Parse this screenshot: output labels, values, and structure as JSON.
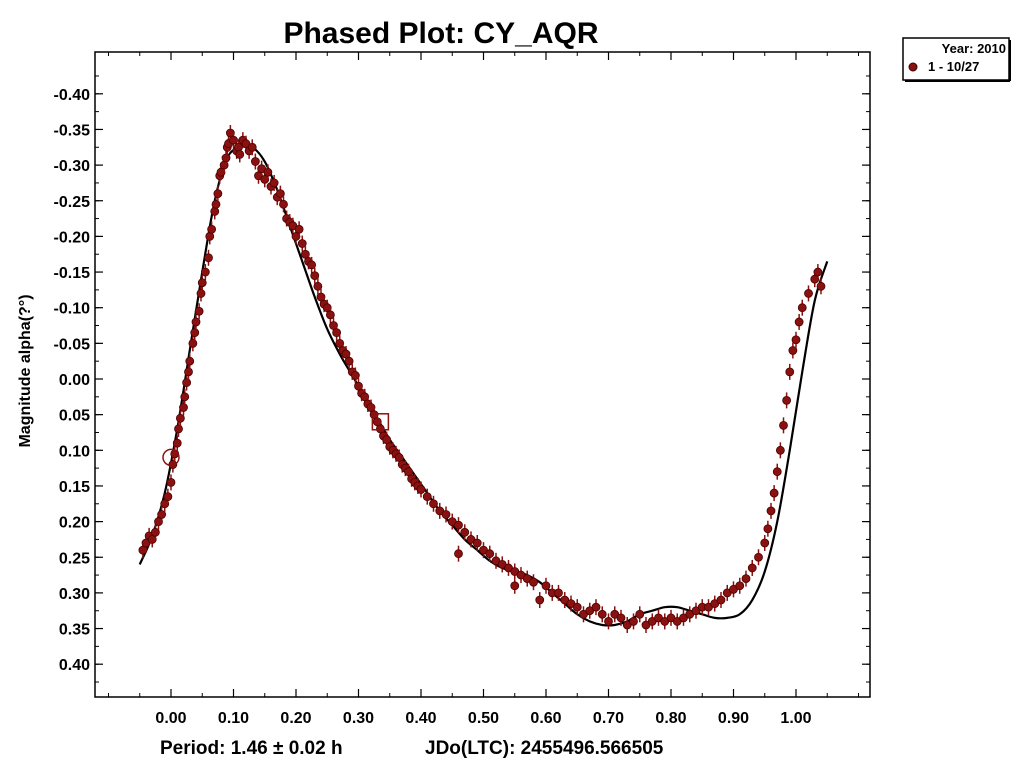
{
  "chart_data": {
    "type": "scatter",
    "title": "Phased Plot: CY_AQR",
    "ylabel": "Magnitude alpha(?°)",
    "xlabel": "",
    "footer": {
      "period": "Period: 1.46 ± 0.02 h",
      "jdo": "JDo(LTC): 2455496.566505"
    },
    "legend": {
      "position": "top-right",
      "title": "Year: 2010",
      "entries": [
        "1 - 10/27"
      ]
    },
    "x_ticks": [
      "0.00",
      "0.10",
      "0.20",
      "0.30",
      "0.40",
      "0.50",
      "0.60",
      "0.70",
      "0.80",
      "0.90",
      "1.00"
    ],
    "y_ticks": [
      "-0.40",
      "-0.35",
      "-0.30",
      "-0.25",
      "-0.20",
      "-0.15",
      "-0.10",
      "-0.05",
      "0.00",
      "0.05",
      "0.10",
      "0.15",
      "0.20",
      "0.25",
      "0.30",
      "0.35",
      "0.40"
    ],
    "xlim": [
      -0.12,
      1.12
    ],
    "ylim": [
      -0.45,
      0.45
    ],
    "y_inverted": true,
    "grid": false,
    "colors": {
      "points": "#8b1111",
      "fit": "#000000"
    },
    "series": [
      {
        "name": "1 - 10/27",
        "marker": "circle-errorbar",
        "points": [
          [
            -0.045,
            0.24
          ],
          [
            -0.04,
            0.23
          ],
          [
            -0.035,
            0.22
          ],
          [
            -0.03,
            0.225
          ],
          [
            -0.025,
            0.215
          ],
          [
            -0.02,
            0.2
          ],
          [
            -0.015,
            0.19
          ],
          [
            -0.01,
            0.175
          ],
          [
            -0.005,
            0.165
          ],
          [
            0.0,
            0.145
          ],
          [
            0.003,
            0.12
          ],
          [
            0.006,
            0.105
          ],
          [
            0.01,
            0.09
          ],
          [
            0.012,
            0.07
          ],
          [
            0.015,
            0.055
          ],
          [
            0.02,
            0.04
          ],
          [
            0.022,
            0.025
          ],
          [
            0.025,
            0.005
          ],
          [
            0.028,
            -0.01
          ],
          [
            0.03,
            -0.025
          ],
          [
            0.035,
            -0.05
          ],
          [
            0.038,
            -0.065
          ],
          [
            0.04,
            -0.08
          ],
          [
            0.045,
            -0.095
          ],
          [
            0.048,
            -0.12
          ],
          [
            0.05,
            -0.135
          ],
          [
            0.055,
            -0.15
          ],
          [
            0.06,
            -0.17
          ],
          [
            0.062,
            -0.2
          ],
          [
            0.065,
            -0.21
          ],
          [
            0.07,
            -0.235
          ],
          [
            0.072,
            -0.245
          ],
          [
            0.075,
            -0.26
          ],
          [
            0.078,
            -0.285
          ],
          [
            0.08,
            -0.29
          ],
          [
            0.085,
            -0.3
          ],
          [
            0.088,
            -0.31
          ],
          [
            0.09,
            -0.325
          ],
          [
            0.092,
            -0.33
          ],
          [
            0.095,
            -0.345
          ],
          [
            0.1,
            -0.335
          ],
          [
            0.105,
            -0.32
          ],
          [
            0.108,
            -0.325
          ],
          [
            0.11,
            -0.315
          ],
          [
            0.115,
            -0.335
          ],
          [
            0.12,
            -0.33
          ],
          [
            0.125,
            -0.32
          ],
          [
            0.13,
            -0.325
          ],
          [
            0.135,
            -0.305
          ],
          [
            0.14,
            -0.285
          ],
          [
            0.145,
            -0.295
          ],
          [
            0.15,
            -0.28
          ],
          [
            0.155,
            -0.29
          ],
          [
            0.16,
            -0.27
          ],
          [
            0.165,
            -0.275
          ],
          [
            0.17,
            -0.255
          ],
          [
            0.175,
            -0.26
          ],
          [
            0.18,
            -0.245
          ],
          [
            0.185,
            -0.225
          ],
          [
            0.19,
            -0.22
          ],
          [
            0.195,
            -0.215
          ],
          [
            0.2,
            -0.2
          ],
          [
            0.205,
            -0.21
          ],
          [
            0.21,
            -0.19
          ],
          [
            0.215,
            -0.175
          ],
          [
            0.22,
            -0.165
          ],
          [
            0.225,
            -0.16
          ],
          [
            0.23,
            -0.145
          ],
          [
            0.235,
            -0.13
          ],
          [
            0.24,
            -0.115
          ],
          [
            0.245,
            -0.105
          ],
          [
            0.25,
            -0.1
          ],
          [
            0.255,
            -0.09
          ],
          [
            0.26,
            -0.075
          ],
          [
            0.265,
            -0.065
          ],
          [
            0.27,
            -0.05
          ],
          [
            0.275,
            -0.04
          ],
          [
            0.28,
            -0.035
          ],
          [
            0.285,
            -0.025
          ],
          [
            0.29,
            -0.01
          ],
          [
            0.295,
            -0.005
          ],
          [
            0.3,
            0.01
          ],
          [
            0.305,
            0.02
          ],
          [
            0.31,
            0.025
          ],
          [
            0.315,
            0.035
          ],
          [
            0.32,
            0.04
          ],
          [
            0.325,
            0.05
          ],
          [
            0.33,
            0.06
          ],
          [
            0.335,
            0.07
          ],
          [
            0.34,
            0.08
          ],
          [
            0.345,
            0.085
          ],
          [
            0.35,
            0.095
          ],
          [
            0.355,
            0.1
          ],
          [
            0.36,
            0.105
          ],
          [
            0.365,
            0.11
          ],
          [
            0.37,
            0.12
          ],
          [
            0.375,
            0.125
          ],
          [
            0.38,
            0.13
          ],
          [
            0.385,
            0.14
          ],
          [
            0.39,
            0.145
          ],
          [
            0.395,
            0.15
          ],
          [
            0.4,
            0.155
          ],
          [
            0.41,
            0.165
          ],
          [
            0.42,
            0.175
          ],
          [
            0.43,
            0.185
          ],
          [
            0.44,
            0.19
          ],
          [
            0.45,
            0.2
          ],
          [
            0.46,
            0.205
          ],
          [
            0.47,
            0.215
          ],
          [
            0.48,
            0.225
          ],
          [
            0.49,
            0.23
          ],
          [
            0.5,
            0.24
          ],
          [
            0.51,
            0.245
          ],
          [
            0.52,
            0.255
          ],
          [
            0.53,
            0.26
          ],
          [
            0.54,
            0.265
          ],
          [
            0.55,
            0.27
          ],
          [
            0.56,
            0.275
          ],
          [
            0.57,
            0.28
          ],
          [
            0.58,
            0.285
          ],
          [
            0.6,
            0.29
          ],
          [
            0.61,
            0.3
          ],
          [
            0.62,
            0.3
          ],
          [
            0.63,
            0.31
          ],
          [
            0.64,
            0.315
          ],
          [
            0.65,
            0.32
          ],
          [
            0.66,
            0.33
          ],
          [
            0.67,
            0.325
          ],
          [
            0.68,
            0.32
          ],
          [
            0.69,
            0.33
          ],
          [
            0.7,
            0.34
          ],
          [
            0.71,
            0.33
          ],
          [
            0.72,
            0.335
          ],
          [
            0.73,
            0.345
          ],
          [
            0.74,
            0.34
          ],
          [
            0.75,
            0.33
          ],
          [
            0.76,
            0.345
          ],
          [
            0.77,
            0.34
          ],
          [
            0.78,
            0.335
          ],
          [
            0.79,
            0.34
          ],
          [
            0.8,
            0.335
          ],
          [
            0.81,
            0.34
          ],
          [
            0.82,
            0.335
          ],
          [
            0.83,
            0.33
          ],
          [
            0.84,
            0.325
          ],
          [
            0.85,
            0.32
          ],
          [
            0.86,
            0.32
          ],
          [
            0.87,
            0.315
          ],
          [
            0.88,
            0.31
          ],
          [
            0.89,
            0.3
          ],
          [
            0.9,
            0.295
          ],
          [
            0.91,
            0.29
          ],
          [
            0.92,
            0.28
          ],
          [
            0.93,
            0.265
          ],
          [
            0.94,
            0.25
          ],
          [
            0.95,
            0.23
          ],
          [
            0.955,
            0.21
          ],
          [
            0.96,
            0.185
          ],
          [
            0.965,
            0.16
          ],
          [
            0.97,
            0.13
          ],
          [
            0.975,
            0.1
          ],
          [
            0.98,
            0.065
          ],
          [
            0.985,
            0.03
          ],
          [
            0.99,
            -0.01
          ],
          [
            0.995,
            -0.04
          ],
          [
            1.0,
            -0.055
          ],
          [
            1.005,
            -0.08
          ],
          [
            1.01,
            -0.1
          ],
          [
            1.02,
            -0.12
          ],
          [
            1.03,
            -0.14
          ],
          [
            1.035,
            -0.15
          ],
          [
            1.04,
            -0.13
          ],
          [
            0.55,
            0.29
          ],
          [
            0.59,
            0.31
          ],
          [
            0.46,
            0.245
          ]
        ],
        "special_points": [
          {
            "marker": "open-circle",
            "x": 0.0,
            "y": 0.11
          },
          {
            "marker": "open-square",
            "x": 0.335,
            "y": 0.06
          }
        ]
      },
      {
        "name": "",
        "kind": "fit-curve",
        "points": [
          [
            -0.05,
            0.26
          ],
          [
            -0.03,
            0.22
          ],
          [
            -0.01,
            0.16
          ],
          [
            0.01,
            0.07
          ],
          [
            0.03,
            -0.04
          ],
          [
            0.05,
            -0.15
          ],
          [
            0.07,
            -0.25
          ],
          [
            0.09,
            -0.31
          ],
          [
            0.11,
            -0.325
          ],
          [
            0.13,
            -0.325
          ],
          [
            0.15,
            -0.305
          ],
          [
            0.17,
            -0.265
          ],
          [
            0.19,
            -0.215
          ],
          [
            0.21,
            -0.165
          ],
          [
            0.23,
            -0.115
          ],
          [
            0.25,
            -0.07
          ],
          [
            0.27,
            -0.035
          ],
          [
            0.29,
            -0.005
          ],
          [
            0.31,
            0.025
          ],
          [
            0.33,
            0.055
          ],
          [
            0.35,
            0.085
          ],
          [
            0.37,
            0.11
          ],
          [
            0.39,
            0.135
          ],
          [
            0.41,
            0.16
          ],
          [
            0.43,
            0.185
          ],
          [
            0.45,
            0.205
          ],
          [
            0.47,
            0.225
          ],
          [
            0.49,
            0.24
          ],
          [
            0.51,
            0.255
          ],
          [
            0.53,
            0.265
          ],
          [
            0.55,
            0.27
          ],
          [
            0.57,
            0.275
          ],
          [
            0.59,
            0.285
          ],
          [
            0.61,
            0.3
          ],
          [
            0.63,
            0.315
          ],
          [
            0.65,
            0.33
          ],
          [
            0.67,
            0.34
          ],
          [
            0.69,
            0.345
          ],
          [
            0.71,
            0.345
          ],
          [
            0.73,
            0.34
          ],
          [
            0.75,
            0.33
          ],
          [
            0.77,
            0.325
          ],
          [
            0.79,
            0.32
          ],
          [
            0.81,
            0.32
          ],
          [
            0.83,
            0.325
          ],
          [
            0.85,
            0.33
          ],
          [
            0.87,
            0.335
          ],
          [
            0.89,
            0.335
          ],
          [
            0.91,
            0.33
          ],
          [
            0.93,
            0.31
          ],
          [
            0.95,
            0.27
          ],
          [
            0.97,
            0.2
          ],
          [
            0.99,
            0.1
          ],
          [
            1.01,
            -0.01
          ],
          [
            1.03,
            -0.11
          ],
          [
            1.05,
            -0.165
          ]
        ]
      }
    ]
  }
}
